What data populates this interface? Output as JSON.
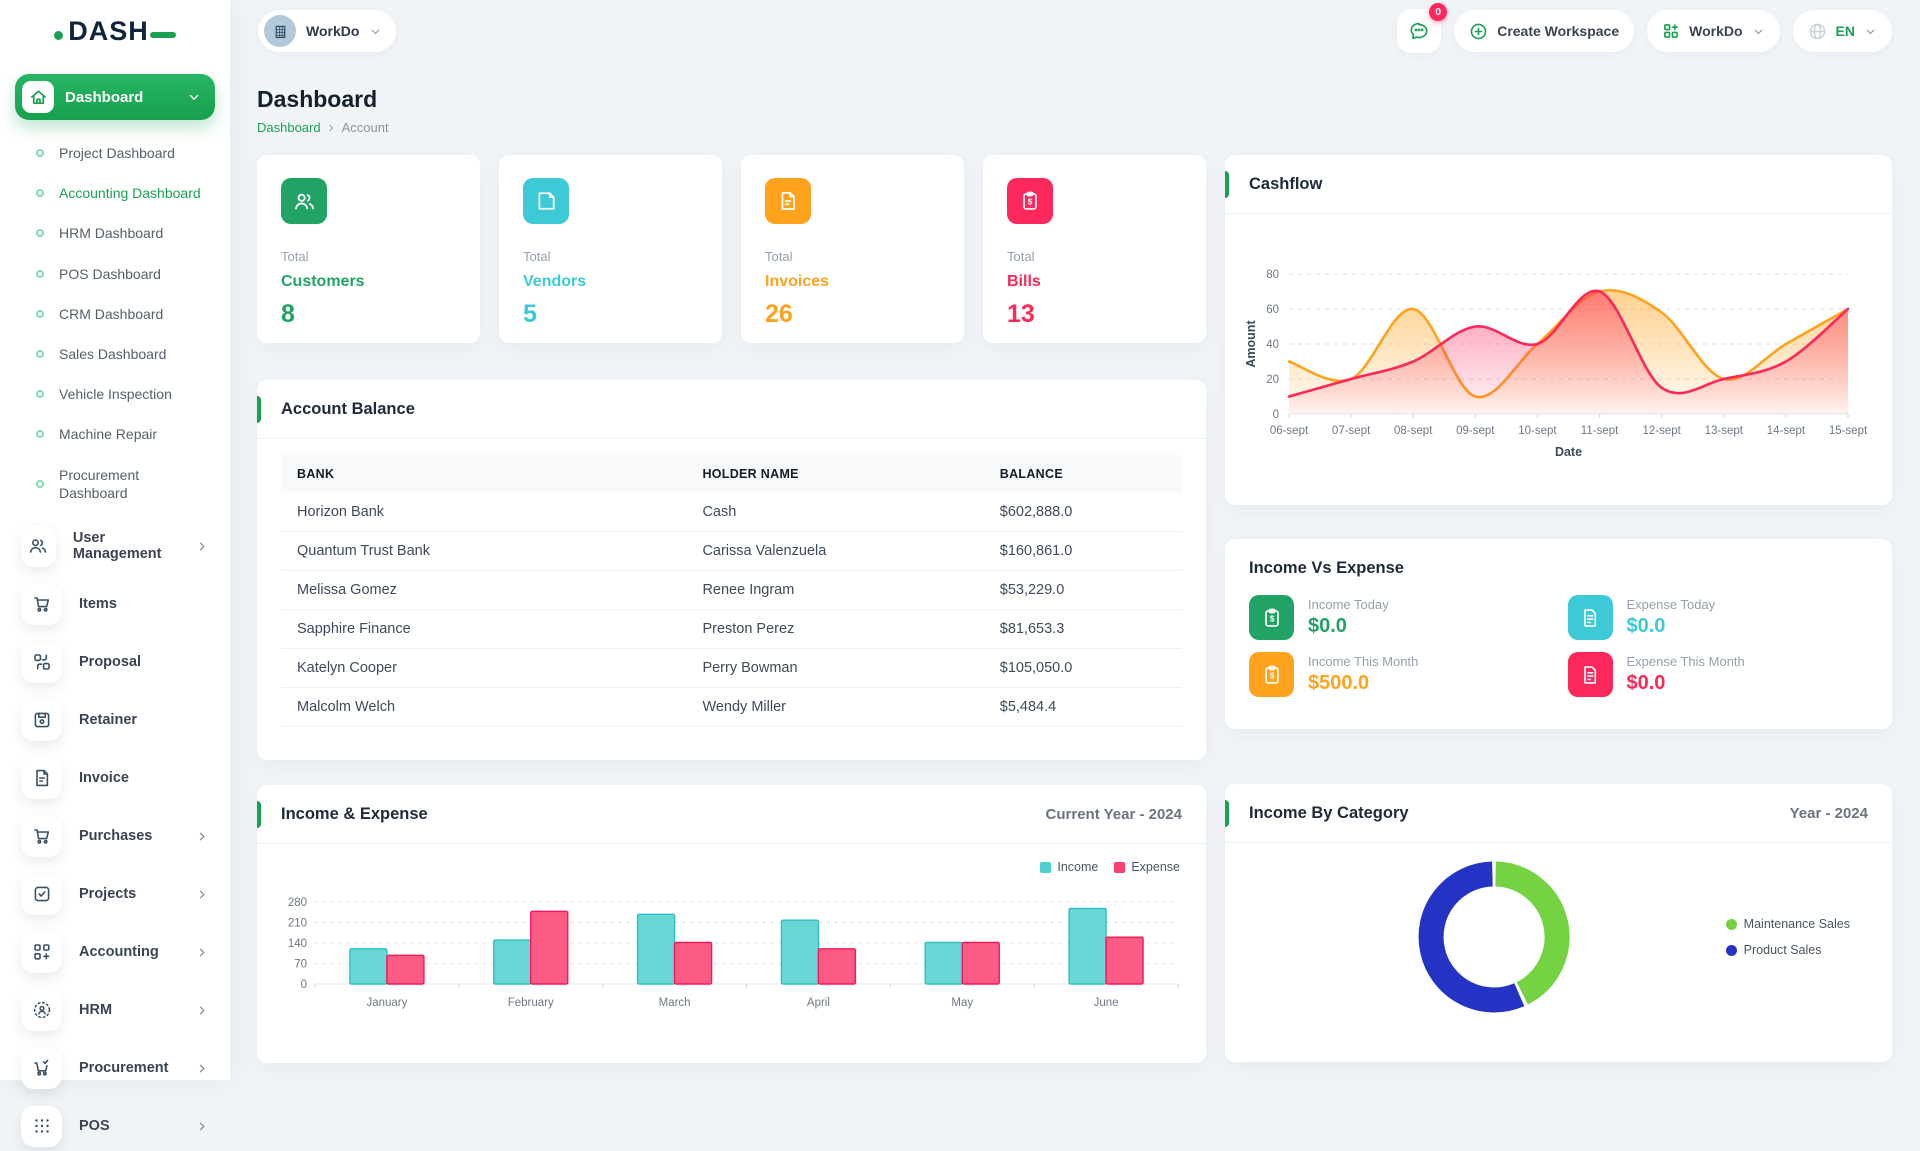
{
  "header": {
    "workspace_label": "WorkDo",
    "messages_badge": "0",
    "create_workspace_label": "Create Workspace",
    "workdo_menu_label": "WorkDo",
    "language": "EN"
  },
  "sidebar": {
    "logo_text": "DASH",
    "active_item": {
      "label": "Dashboard"
    },
    "dashboard_children": [
      "Project Dashboard",
      "Accounting Dashboard",
      "HRM Dashboard",
      "POS Dashboard",
      "CRM Dashboard",
      "Sales Dashboard",
      "Vehicle Inspection",
      "Machine Repair",
      "Procurement Dashboard"
    ],
    "active_child": "Accounting Dashboard",
    "items": [
      {
        "label": "User Management"
      },
      {
        "label": "Items"
      },
      {
        "label": "Proposal"
      },
      {
        "label": "Retainer"
      },
      {
        "label": "Invoice"
      },
      {
        "label": "Purchases"
      },
      {
        "label": "Projects"
      },
      {
        "label": "Accounting"
      },
      {
        "label": "HRM"
      },
      {
        "label": "Procurement"
      },
      {
        "label": "POS"
      }
    ]
  },
  "page": {
    "title": "Dashboard",
    "breadcrumb_root": "Dashboard",
    "breadcrumb_current": "Account"
  },
  "stat_cards": [
    {
      "prefix": "Total",
      "label": "Customers",
      "value": "8",
      "color": "#21a366"
    },
    {
      "prefix": "Total",
      "label": "Vendors",
      "value": "5",
      "color": "#3ec9d6"
    },
    {
      "prefix": "Total",
      "label": "Invoices",
      "value": "26",
      "color": "#ffa21d"
    },
    {
      "prefix": "Total",
      "label": "Bills",
      "value": "13",
      "color": "#fc275a"
    }
  ],
  "cashflow": {
    "title": "Cashflow",
    "chart_data": {
      "type": "area",
      "x": [
        "06-sept",
        "07-sept",
        "08-sept",
        "09-sept",
        "10-sept",
        "11-sept",
        "12-sept",
        "13-sept",
        "14-sept",
        "15-sept"
      ],
      "series": [
        {
          "color": "#ffa21d",
          "values": [
            30,
            20,
            60,
            10,
            40,
            70,
            58,
            20,
            40,
            60
          ]
        },
        {
          "color": "#fc275a",
          "values": [
            10,
            20,
            30,
            50,
            40,
            70,
            15,
            20,
            30,
            60
          ]
        }
      ],
      "xlabel": "Date",
      "ylabel": "Amount",
      "ylim": [
        0,
        80
      ],
      "yticks": [
        0,
        20,
        40,
        60,
        80
      ],
      "grid": "dashed"
    }
  },
  "account_balance": {
    "title": "Account Balance",
    "columns": [
      "BANK",
      "HOLDER NAME",
      "BALANCE"
    ],
    "rows": [
      [
        "Horizon Bank",
        "Cash",
        "$602,888.0"
      ],
      [
        "Quantum Trust Bank",
        "Carissa Valenzuela",
        "$160,861.0"
      ],
      [
        "Melissa Gomez",
        "Renee Ingram",
        "$53,229.0"
      ],
      [
        "Sapphire Finance",
        "Preston Perez",
        "$81,653.3"
      ],
      [
        "Katelyn Cooper",
        "Perry Bowman",
        "$105,050.0"
      ],
      [
        "Malcolm Welch",
        "Wendy Miller",
        "$5,484.4"
      ]
    ]
  },
  "income_vs_expense": {
    "title": "Income Vs Expense",
    "stats": [
      {
        "label": "Income Today",
        "value": "$0.0",
        "color": "#21a366",
        "icon": "income-clipboard-icon"
      },
      {
        "label": "Expense Today",
        "value": "$0.0",
        "color": "#3ec9d6",
        "icon": "expense-receipt-icon"
      },
      {
        "label": "Income This Month",
        "value": "$500.0",
        "color": "#ffa21d",
        "icon": "income-clipboard-icon"
      },
      {
        "label": "Expense This Month",
        "value": "$0.0",
        "color": "#fc275a",
        "icon": "expense-receipt-icon"
      }
    ]
  },
  "income_expense_chart": {
    "title": "Income & Expense",
    "period": "Current Year - 2024",
    "chart_data": {
      "type": "bar",
      "categories": [
        "January",
        "February",
        "March",
        "April",
        "May",
        "June"
      ],
      "series": [
        {
          "name": "Income",
          "color": "#4ed0cf",
          "border": "#2cc0c4",
          "values": [
            120,
            150,
            238,
            218,
            142,
            258
          ]
        },
        {
          "name": "Expense",
          "color": "#fc3f6e",
          "border": "#f5185a",
          "values": [
            98,
            248,
            142,
            120,
            142,
            160
          ]
        }
      ],
      "ylim": [
        0,
        280
      ],
      "yticks": [
        0,
        70,
        140,
        210,
        280
      ],
      "grid": "dashed",
      "legend_position": "top-right"
    }
  },
  "income_by_category": {
    "title": "Income By Category",
    "period": "Year - 2024",
    "chart_data": {
      "type": "pie",
      "slices": [
        {
          "label": "Maintenance Sales",
          "color": "#74d243",
          "percent": 43
        },
        {
          "label": "Product Sales",
          "color": "#2533c4",
          "percent": 57
        }
      ],
      "legend_position": "right"
    }
  }
}
